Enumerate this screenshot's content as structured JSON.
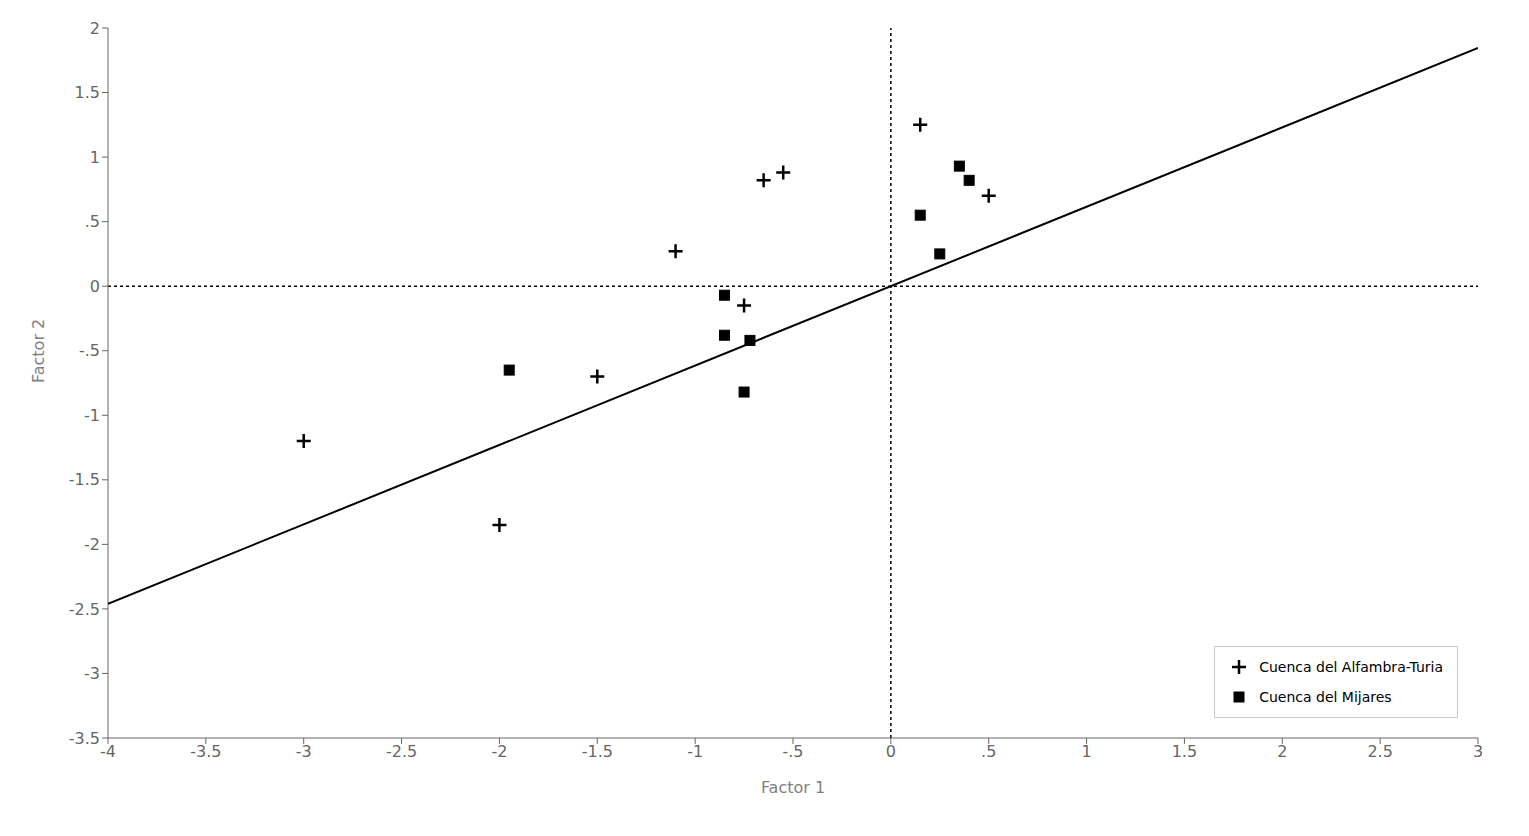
{
  "chart_data": {
    "type": "scatter",
    "title": "",
    "xlabel": "Factor 1",
    "ylabel": "Factor 2",
    "xlim": [
      -4,
      3
    ],
    "ylim": [
      -3.5,
      2
    ],
    "xticks": [
      -4,
      -3.5,
      -3,
      -2.5,
      -2,
      -1.5,
      -1,
      {
        "value": -0.5,
        "label": "-.5"
      },
      0,
      {
        "value": 0.5,
        "label": ".5"
      },
      1,
      1.5,
      2,
      2.5,
      3
    ],
    "yticks": [
      -3.5,
      -3,
      -2.5,
      -2,
      -1.5,
      -1,
      {
        "value": -0.5,
        "label": "-.5"
      },
      0,
      {
        "value": 0.5,
        "label": ".5"
      },
      1,
      1.5,
      2
    ],
    "series": [
      {
        "type": "line",
        "line_style": "solid",
        "color": "#000000",
        "x": [
          -4,
          3
        ],
        "values": [
          -2.46,
          1.845
        ]
      },
      {
        "name": "Cuenca del Alfambra-Turia",
        "type": "scatter",
        "marker": "plus",
        "color": "#000000",
        "x": [
          -3.0,
          -2.0,
          -1.5,
          -1.1,
          -0.75,
          -0.65,
          -0.55,
          0.15,
          0.5
        ],
        "values": [
          -1.2,
          -1.85,
          -0.7,
          0.27,
          -0.15,
          0.82,
          0.88,
          1.25,
          0.7
        ]
      },
      {
        "name": "Cuenca del Mijares",
        "type": "scatter",
        "marker": "square",
        "color": "#000000",
        "x": [
          -1.95,
          -0.85,
          -0.85,
          -0.72,
          -0.75,
          0.15,
          0.25,
          0.35,
          0.4
        ],
        "values": [
          -0.65,
          -0.07,
          -0.38,
          -0.42,
          -0.82,
          0.55,
          0.25,
          0.93,
          0.82
        ]
      }
    ],
    "vline_x": 0,
    "hline_y": 0,
    "legend": "lower right",
    "grid": false
  }
}
